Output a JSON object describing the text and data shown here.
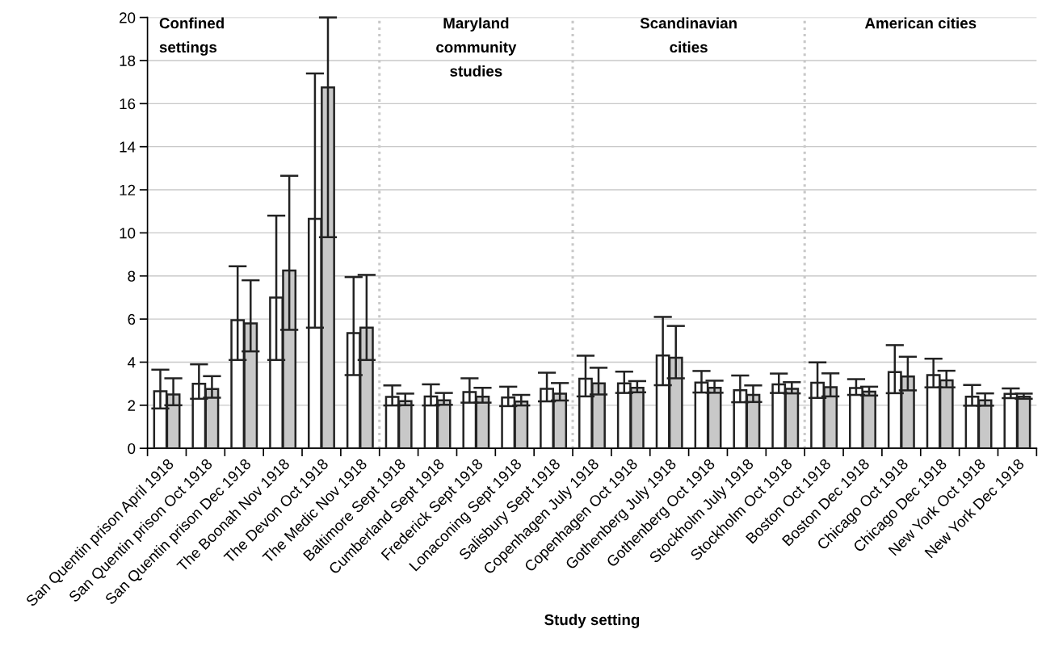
{
  "chart_data": {
    "type": "bar",
    "xlabel": "Study setting",
    "categories": [
      "San Quentin prison April 1918",
      "San Quentin prison Oct 1918",
      "San Quentin prison Dec 1918",
      "The Boonah Nov 1918",
      "The Devon Oct 1918",
      "The Medic Nov 1918",
      "Baltimore Sept 1918",
      "Cumberland Sept 1918",
      "Frederick Sept 1918",
      "Lonaconing Sept 1918",
      "Salisbury Sept 1918",
      "Copenhagen July 1918",
      "Copenhagen Oct 1918",
      "Gothenberg July 1918",
      "Gothenberg Oct 1918",
      "Stockholm July 1918",
      "Stockholm Oct 1918",
      "Boston Oct 1918",
      "Boston Dec 1918",
      "Chicago Oct 1918",
      "Chicago Dec 1918",
      "New York Oct 1918",
      "New York Dec 1918"
    ],
    "series": [
      {
        "color": "#ffffff",
        "values": [
          2.65,
          3.0,
          5.95,
          7.0,
          10.65,
          5.35,
          2.39,
          2.41,
          2.61,
          2.36,
          2.76,
          3.23,
          3.02,
          4.31,
          3.05,
          2.7,
          2.97,
          3.04,
          2.8,
          3.54,
          3.4,
          2.4,
          2.53
        ],
        "errors": [
          [
            1.85,
            3.65
          ],
          [
            2.3,
            3.9
          ],
          [
            4.1,
            8.45
          ],
          [
            4.1,
            10.8
          ],
          [
            5.6,
            17.4
          ],
          [
            3.4,
            7.95
          ],
          [
            1.99,
            2.92
          ],
          [
            1.99,
            2.97
          ],
          [
            2.12,
            3.25
          ],
          [
            1.96,
            2.86
          ],
          [
            2.18,
            3.51
          ],
          [
            2.41,
            4.3
          ],
          [
            2.57,
            3.56
          ],
          [
            2.93,
            6.1
          ],
          [
            2.59,
            3.59
          ],
          [
            2.14,
            3.38
          ],
          [
            2.57,
            3.47
          ],
          [
            2.34,
            3.99
          ],
          [
            2.48,
            3.21
          ],
          [
            2.56,
            4.79
          ],
          [
            2.83,
            4.16
          ],
          [
            1.98,
            2.94
          ],
          [
            2.33,
            2.78
          ]
        ]
      },
      {
        "color": "#c8c8c8",
        "values": [
          2.5,
          2.75,
          5.8,
          8.25,
          16.75,
          5.6,
          2.19,
          2.23,
          2.4,
          2.17,
          2.54,
          3.02,
          2.81,
          4.21,
          2.81,
          2.48,
          2.76,
          2.84,
          2.63,
          3.33,
          3.16,
          2.23,
          2.4
        ],
        "errors": [
          [
            2.0,
            3.25
          ],
          [
            2.35,
            3.35
          ],
          [
            4.5,
            7.8
          ],
          [
            5.5,
            12.65
          ],
          [
            9.8,
            20
          ],
          [
            4.1,
            8.05
          ],
          [
            2.0,
            2.54
          ],
          [
            2.02,
            2.57
          ],
          [
            2.12,
            2.81
          ],
          [
            1.99,
            2.48
          ],
          [
            2.22,
            3.03
          ],
          [
            2.5,
            3.74
          ],
          [
            2.6,
            3.12
          ],
          [
            3.25,
            5.68
          ],
          [
            2.58,
            3.14
          ],
          [
            2.15,
            2.92
          ],
          [
            2.55,
            3.07
          ],
          [
            2.41,
            3.48
          ],
          [
            2.45,
            2.86
          ],
          [
            2.69,
            4.25
          ],
          [
            2.83,
            3.6
          ],
          [
            1.98,
            2.55
          ],
          [
            2.3,
            2.54
          ]
        ]
      }
    ],
    "ylim": [
      0,
      20
    ],
    "yticks": [
      0,
      2,
      4,
      6,
      8,
      10,
      12,
      14,
      16,
      18,
      20
    ],
    "grid": "y",
    "annotations": [
      "Confined\nsettings",
      "Maryland\ncommunity\nstudies",
      "Scandinavian\ncities",
      "American cities"
    ]
  }
}
